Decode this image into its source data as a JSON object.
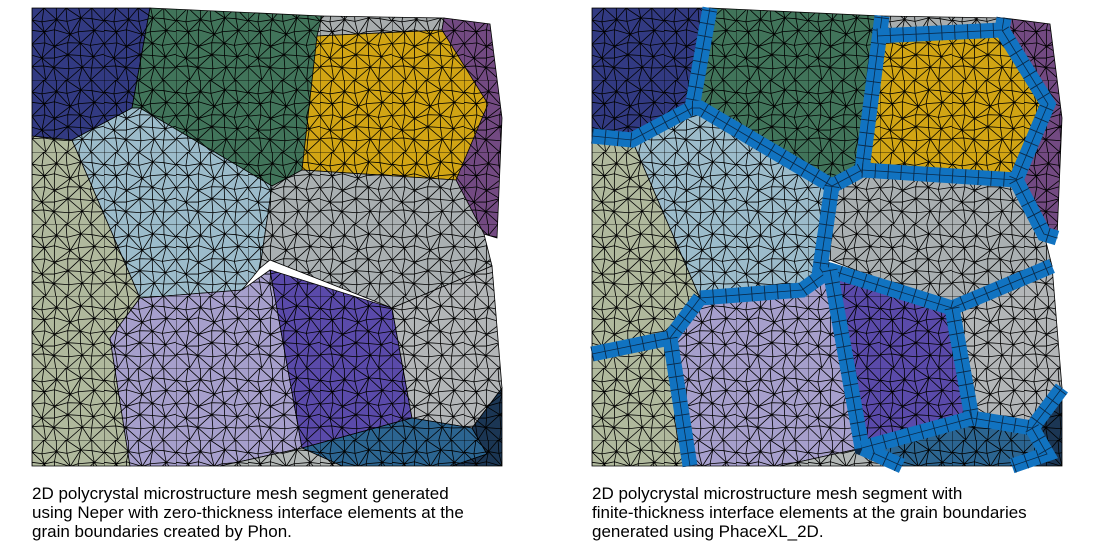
{
  "colors": {
    "grains": {
      "navy": "#323a82",
      "green": "#41745a",
      "gold": "#d2a514",
      "purple_edge": "#734a82",
      "light_blue": "#9cbccb",
      "khaki": "#b0b99d",
      "gray_light": "#a8adae",
      "gray_mid": "#aab0b2",
      "lavender": "#a69fcc",
      "violet": "#5a4aaa",
      "steel_blue": "#2c6591",
      "dark_navy": "#1b3654",
      "gray_bottom": "#b2b7b6",
      "gray_right": "#b3b6b8"
    },
    "interface": "#1173c1",
    "mesh_lines": "#000000"
  },
  "figures": [
    {
      "id": "neper-zero-thickness",
      "caption_lines": [
        "2D polycrystal microstructure mesh segment generated",
        "using Neper with zero-thickness interface elements at the",
        "grain boundaries created by Phon."
      ]
    },
    {
      "id": "phacexl-finite-thickness",
      "caption_lines": [
        "2D polycrystal microstructure mesh segment with",
        "finite-thickness interface elements at the grain boundaries",
        "generated using PhaceXL_2D."
      ]
    }
  ]
}
